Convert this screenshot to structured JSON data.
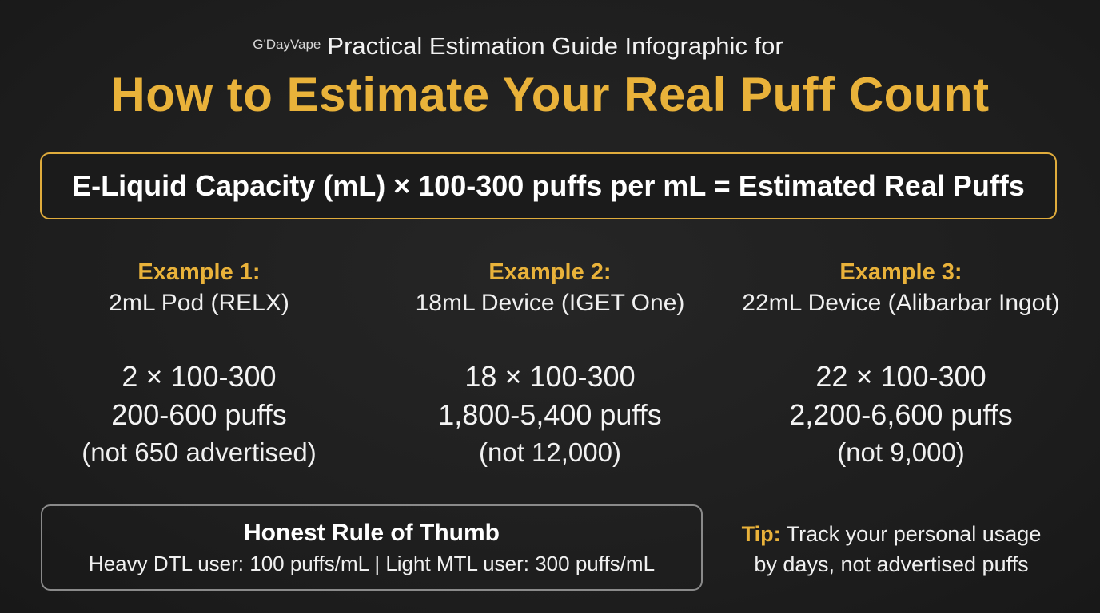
{
  "header": {
    "brand": "G'DayVape",
    "subtitle": "Practical Estimation Guide Infographic for",
    "title": "How to Estimate Your Real Puff Count"
  },
  "formula": {
    "text": "E-Liquid Capacity (mL) × 100-300 puffs per mL = Estimated Real Puffs"
  },
  "examples": [
    {
      "heading": "Example 1:",
      "device": "2mL Pod (RELX)",
      "calc": "2 × 100-300",
      "result": "200-600 puffs",
      "note": "(not 650 advertised)"
    },
    {
      "heading": "Example 2:",
      "device": "18mL Device (IGET One)",
      "calc": "18 × 100-300",
      "result": "1,800-5,400 puffs",
      "note": "(not 12,000)"
    },
    {
      "heading": "Example 3:",
      "device": "22mL Device (Alibarbar Ingot)",
      "calc": "22 × 100-300",
      "result": "2,200-6,600 puffs",
      "note": "(not 9,000)"
    }
  ],
  "rule": {
    "title": "Honest Rule of Thumb",
    "text": "Heavy DTL user: 100 puffs/mL | Light MTL user: 300 puffs/mL"
  },
  "tip": {
    "label": "Tip:",
    "line1": "Track your personal usage",
    "line2": "by days, not advertised puffs"
  },
  "colors": {
    "accent": "#e9b23a",
    "background": "#1f1f1f",
    "text": "#ffffff",
    "rule_border": "#8a8a8a"
  }
}
